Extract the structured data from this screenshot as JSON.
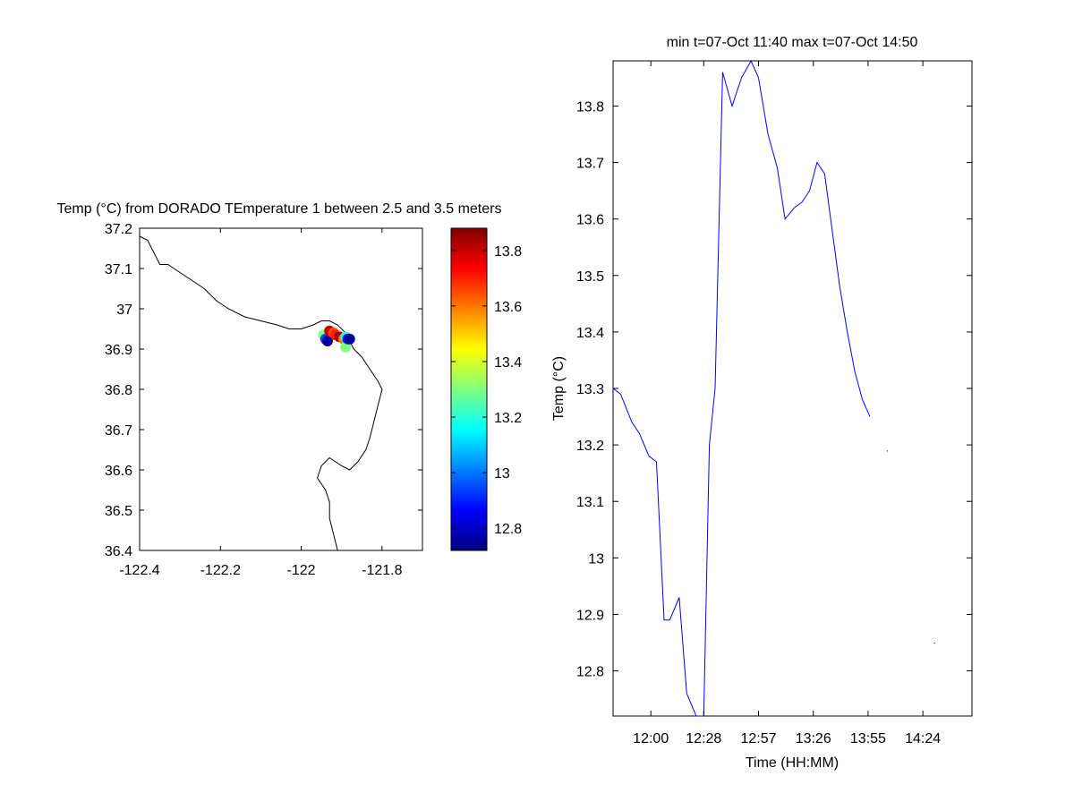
{
  "chart_data": [
    {
      "type": "scatter",
      "title": "Temp (°C) from DORADO TEmperature 1 between 2.5 and 3.5 meters",
      "xlim": [
        -122.4,
        -121.7
      ],
      "ylim": [
        36.4,
        37.2
      ],
      "x_ticks": [
        -122.4,
        -122.2,
        -122,
        -121.8
      ],
      "x_tick_labels": [
        "-122.4",
        "-122.2",
        "-122",
        "-121.8"
      ],
      "y_ticks": [
        36.4,
        36.5,
        36.6,
        36.7,
        36.8,
        36.9,
        37,
        37.1,
        37.2
      ],
      "y_tick_labels": [
        "36.4",
        "36.5",
        "36.6",
        "36.7",
        "36.8",
        "36.9",
        "37",
        "37.1",
        "37.2"
      ],
      "grid": false,
      "coastline": [
        [
          -122.4,
          37.18
        ],
        [
          -122.38,
          37.17
        ],
        [
          -122.37,
          37.15
        ],
        [
          -122.36,
          37.13
        ],
        [
          -122.35,
          37.11
        ],
        [
          -122.33,
          37.11
        ],
        [
          -122.3,
          37.09
        ],
        [
          -122.27,
          37.07
        ],
        [
          -122.24,
          37.05
        ],
        [
          -122.21,
          37.02
        ],
        [
          -122.18,
          37.0
        ],
        [
          -122.14,
          36.98
        ],
        [
          -122.1,
          36.97
        ],
        [
          -122.06,
          36.96
        ],
        [
          -122.03,
          36.95
        ],
        [
          -122.0,
          36.95
        ],
        [
          -121.97,
          36.96
        ],
        [
          -121.95,
          36.97
        ],
        [
          -121.93,
          36.97
        ],
        [
          -121.91,
          36.96
        ],
        [
          -121.89,
          36.94
        ],
        [
          -121.88,
          36.92
        ],
        [
          -121.87,
          36.9
        ],
        [
          -121.85,
          36.88
        ],
        [
          -121.83,
          36.85
        ],
        [
          -121.81,
          36.82
        ],
        [
          -121.8,
          36.8
        ],
        [
          -121.81,
          36.76
        ],
        [
          -121.82,
          36.72
        ],
        [
          -121.83,
          36.68
        ],
        [
          -121.84,
          36.65
        ],
        [
          -121.86,
          36.62
        ],
        [
          -121.88,
          36.6
        ],
        [
          -121.9,
          36.61
        ],
        [
          -121.93,
          36.63
        ],
        [
          -121.95,
          36.61
        ],
        [
          -121.96,
          36.58
        ],
        [
          -121.94,
          36.55
        ],
        [
          -121.93,
          36.52
        ],
        [
          -121.93,
          36.48
        ],
        [
          -121.92,
          36.44
        ],
        [
          -121.91,
          36.4
        ]
      ],
      "series": [
        {
          "points": [
            {
              "lon": -121.945,
              "lat": 36.935,
              "value": 13.3
            },
            {
              "lon": -121.94,
              "lat": 36.925,
              "value": 12.95
            },
            {
              "lon": -121.935,
              "lat": 36.92,
              "value": 12.75
            },
            {
              "lon": -121.93,
              "lat": 36.945,
              "value": 13.8
            },
            {
              "lon": -121.92,
              "lat": 36.94,
              "value": 13.65
            },
            {
              "lon": -121.915,
              "lat": 36.935,
              "value": 13.7
            },
            {
              "lon": -121.905,
              "lat": 36.93,
              "value": 13.85
            },
            {
              "lon": -121.895,
              "lat": 36.925,
              "value": 13.6
            },
            {
              "lon": -121.89,
              "lat": 36.905,
              "value": 13.3
            },
            {
              "lon": -121.89,
              "lat": 36.93,
              "value": 13.2
            },
            {
              "lon": -121.885,
              "lat": 36.925,
              "value": 12.9
            },
            {
              "lon": -121.88,
              "lat": 36.925,
              "value": 12.75
            }
          ]
        }
      ],
      "colorbar": {
        "colormap": "jet",
        "min": 12.72,
        "max": 13.88,
        "ticks": [
          12.8,
          13,
          13.2,
          13.4,
          13.6,
          13.8
        ],
        "tick_labels": [
          "12.8",
          "13",
          "13.2",
          "13.4",
          "13.6",
          "13.8"
        ]
      }
    },
    {
      "type": "line",
      "title": "min t=07-Oct 11:40 max t=07-Oct 14:50",
      "xlabel": "Time (HH:MM)",
      "ylabel": "Temp (°C)",
      "xlim": [
        700,
        890
      ],
      "ylim": [
        12.72,
        13.88
      ],
      "x_ticks": [
        720,
        748,
        777,
        806,
        835,
        864
      ],
      "x_tick_labels": [
        "12:00",
        "12:28",
        "12:57",
        "13:26",
        "13:55",
        "14:24"
      ],
      "y_ticks": [
        12.8,
        12.9,
        13,
        13.1,
        13.2,
        13.3,
        13.4,
        13.5,
        13.6,
        13.7,
        13.8
      ],
      "y_tick_labels": [
        "12.8",
        "12.9",
        "13",
        "13.1",
        "13.2",
        "13.3",
        "13.4",
        "13.5",
        "13.6",
        "13.7",
        "13.8"
      ],
      "grid": false,
      "line_color": "#0000ff",
      "series": [
        {
          "x": [
            700,
            704,
            710,
            714,
            719,
            723,
            727,
            730,
            735,
            739,
            744,
            748,
            751,
            754,
            758,
            763,
            768,
            773,
            777,
            782,
            787,
            791,
            796,
            800,
            804,
            808,
            812,
            816,
            820,
            824,
            828,
            832,
            836
          ],
          "y": [
            13.3,
            13.29,
            13.24,
            13.22,
            13.18,
            13.17,
            12.89,
            12.89,
            12.93,
            12.76,
            12.72,
            12.72,
            13.2,
            13.3,
            13.86,
            13.8,
            13.85,
            13.88,
            13.85,
            13.75,
            13.69,
            13.6,
            13.62,
            13.63,
            13.65,
            13.7,
            13.68,
            13.58,
            13.48,
            13.4,
            13.33,
            13.28,
            13.25
          ]
        }
      ],
      "stray_points": [
        {
          "x": 845,
          "y": 13.19
        },
        {
          "x": 870,
          "y": 12.85
        }
      ]
    }
  ]
}
